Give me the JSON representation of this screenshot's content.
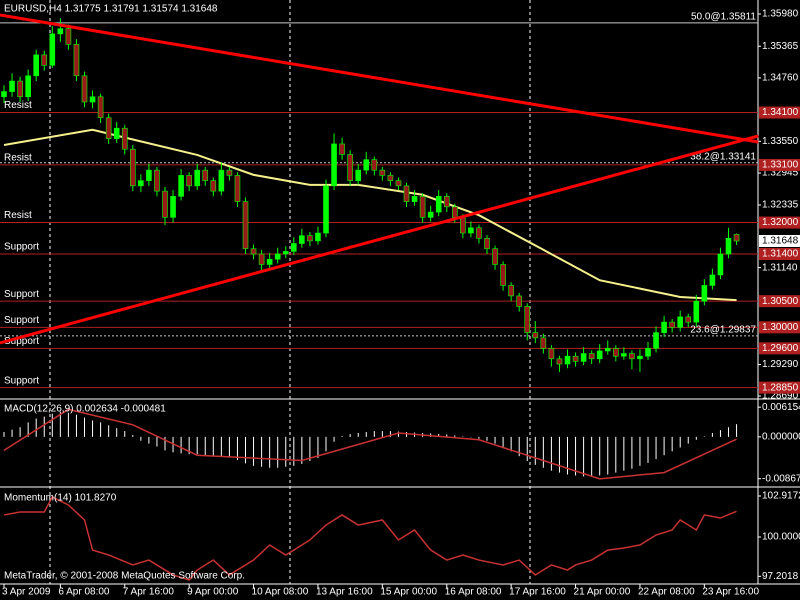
{
  "chart_data": [
    {
      "type": "candlestick",
      "title": "EURUSD,H4  1.31775 1.31791 1.31574 1.31648",
      "up_color": "#00ff00",
      "down_color": "#9a1a1a",
      "wick_color": "#00ff00",
      "ylim": [
        1.28652,
        1.36247
      ],
      "yticks": [
        {
          "value": 1.3598,
          "label": "1.35980"
        },
        {
          "value": 1.35365,
          "label": "1.35365"
        },
        {
          "value": 1.3476,
          "label": "1.34760"
        },
        {
          "value": 1.3355,
          "label": "1.33550"
        },
        {
          "value": 1.32945,
          "label": "1.32945"
        },
        {
          "value": 1.32335,
          "label": "1.32335"
        },
        {
          "value": 1.3114,
          "label": "1.31140"
        },
        {
          "value": 1.2929,
          "label": "1.29290"
        },
        {
          "value": 1.2869,
          "label": "1.28690"
        }
      ],
      "xticks": [
        {
          "value": 0,
          "label": "3 Apr 2009"
        },
        {
          "value": 7,
          "label": "6 Apr 08:00"
        },
        {
          "value": 15,
          "label": "7 Apr 16:00"
        },
        {
          "value": 23,
          "label": "9 Apr 00:00"
        },
        {
          "value": 31,
          "label": "10 Apr 08:00"
        },
        {
          "value": 39,
          "label": "13 Apr 16:00"
        },
        {
          "value": 47,
          "label": "15 Apr 00:00"
        },
        {
          "value": 55,
          "label": "16 Apr 08:00"
        },
        {
          "value": 63,
          "label": "17 Apr 16:00"
        },
        {
          "value": 71,
          "label": "21 Apr 00:00"
        },
        {
          "value": 79,
          "label": "22 Apr 08:00"
        },
        {
          "value": 87,
          "label": "23 Apr 16:00"
        }
      ],
      "candles": [
        [
          1.344,
          1.3462,
          1.3428,
          1.345
        ],
        [
          1.345,
          1.3485,
          1.344,
          1.347
        ],
        [
          1.347,
          1.3478,
          1.343,
          1.344
        ],
        [
          1.344,
          1.3492,
          1.3432,
          1.348
        ],
        [
          1.348,
          1.353,
          1.347,
          1.352
        ],
        [
          1.352,
          1.3528,
          1.349,
          1.35
        ],
        [
          1.35,
          1.3575,
          1.3495,
          1.356
        ],
        [
          1.356,
          1.359,
          1.3545,
          1.357
        ],
        [
          1.357,
          1.3578,
          1.353,
          1.354
        ],
        [
          1.354,
          1.355,
          1.347,
          1.348
        ],
        [
          1.348,
          1.3488,
          1.342,
          1.343
        ],
        [
          1.343,
          1.3452,
          1.3418,
          1.344
        ],
        [
          1.344,
          1.3446,
          1.339,
          1.34
        ],
        [
          1.34,
          1.3408,
          1.335,
          1.336
        ],
        [
          1.336,
          1.3392,
          1.3352,
          1.338
        ],
        [
          1.338,
          1.3386,
          1.333,
          1.334
        ],
        [
          1.334,
          1.3348,
          1.326,
          1.327
        ],
        [
          1.327,
          1.3292,
          1.3258,
          1.328
        ],
        [
          1.328,
          1.3312,
          1.327,
          1.33
        ],
        [
          1.33,
          1.3306,
          1.325,
          1.326
        ],
        [
          1.326,
          1.3268,
          1.3195,
          1.321
        ],
        [
          1.321,
          1.3262,
          1.32,
          1.325
        ],
        [
          1.325,
          1.3302,
          1.3242,
          1.329
        ],
        [
          1.329,
          1.3296,
          1.326,
          1.327
        ],
        [
          1.327,
          1.3312,
          1.3262,
          1.33
        ],
        [
          1.33,
          1.3306,
          1.327,
          1.328
        ],
        [
          1.328,
          1.3286,
          1.325,
          1.326
        ],
        [
          1.326,
          1.3315,
          1.3252,
          1.33
        ],
        [
          1.33,
          1.3306,
          1.328,
          1.329
        ],
        [
          1.329,
          1.3296,
          1.323,
          1.324
        ],
        [
          1.324,
          1.3248,
          1.314,
          1.315
        ],
        [
          1.315,
          1.3158,
          1.313,
          1.314
        ],
        [
          1.314,
          1.3148,
          1.3105,
          1.312
        ],
        [
          1.312,
          1.3142,
          1.3112,
          1.313
        ],
        [
          1.313,
          1.3152,
          1.3122,
          1.314
        ],
        [
          1.314,
          1.3155,
          1.3132,
          1.3145
        ],
        [
          1.3145,
          1.3172,
          1.3138,
          1.316
        ],
        [
          1.316,
          1.3188,
          1.3152,
          1.3175
        ],
        [
          1.3175,
          1.3182,
          1.3155,
          1.3165
        ],
        [
          1.3165,
          1.3192,
          1.3158,
          1.318
        ],
        [
          1.318,
          1.3282,
          1.3172,
          1.327
        ],
        [
          1.327,
          1.337,
          1.3262,
          1.335
        ],
        [
          1.335,
          1.3362,
          1.332,
          1.333
        ],
        [
          1.333,
          1.3338,
          1.327,
          1.328
        ],
        [
          1.328,
          1.3312,
          1.3272,
          1.33
        ],
        [
          1.33,
          1.3335,
          1.3292,
          1.332
        ],
        [
          1.332,
          1.3326,
          1.329,
          1.33
        ],
        [
          1.33,
          1.3306,
          1.328,
          1.329
        ],
        [
          1.329,
          1.3296,
          1.327,
          1.328
        ],
        [
          1.328,
          1.3286,
          1.3262,
          1.327
        ],
        [
          1.327,
          1.3276,
          1.323,
          1.324
        ],
        [
          1.324,
          1.3262,
          1.3232,
          1.325
        ],
        [
          1.325,
          1.3256,
          1.32,
          1.321
        ],
        [
          1.321,
          1.3232,
          1.3202,
          1.322
        ],
        [
          1.322,
          1.3262,
          1.3212,
          1.325
        ],
        [
          1.325,
          1.3256,
          1.322,
          1.323
        ],
        [
          1.323,
          1.3236,
          1.32,
          1.321
        ],
        [
          1.321,
          1.3216,
          1.317,
          1.318
        ],
        [
          1.318,
          1.3202,
          1.3172,
          1.319
        ],
        [
          1.319,
          1.3196,
          1.316,
          1.317
        ],
        [
          1.317,
          1.3176,
          1.314,
          1.315
        ],
        [
          1.315,
          1.3156,
          1.311,
          1.312
        ],
        [
          1.312,
          1.3126,
          1.307,
          1.308
        ],
        [
          1.308,
          1.3086,
          1.305,
          1.306
        ],
        [
          1.306,
          1.3066,
          1.303,
          1.304
        ],
        [
          1.304,
          1.3046,
          1.2975,
          1.299
        ],
        [
          1.299,
          1.3012,
          1.297,
          1.298
        ],
        [
          1.298,
          1.2988,
          1.295,
          1.296
        ],
        [
          1.296,
          1.2966,
          1.2925,
          1.294
        ],
        [
          1.294,
          1.2946,
          1.2915,
          1.293
        ],
        [
          1.293,
          1.2958,
          1.2922,
          1.2945
        ],
        [
          1.2945,
          1.2952,
          1.2925,
          1.2935
        ],
        [
          1.2935,
          1.2962,
          1.2928,
          1.295
        ],
        [
          1.295,
          1.2956,
          1.293,
          1.294
        ],
        [
          1.294,
          1.2968,
          1.2932,
          1.2955
        ],
        [
          1.2955,
          1.2975,
          1.2948,
          1.296
        ],
        [
          1.296,
          1.2966,
          1.2935,
          1.2945
        ],
        [
          1.2945,
          1.2962,
          1.2938,
          1.295
        ],
        [
          1.295,
          1.2956,
          1.292,
          1.294
        ],
        [
          1.294,
          1.2958,
          1.2915,
          1.2945
        ],
        [
          1.2945,
          1.2972,
          1.2938,
          1.296
        ],
        [
          1.296,
          1.3002,
          1.2952,
          1.299
        ],
        [
          1.299,
          1.3022,
          1.2982,
          1.301
        ],
        [
          1.301,
          1.3016,
          1.299,
          1.3
        ],
        [
          1.3,
          1.3032,
          1.2992,
          1.302
        ],
        [
          1.302,
          1.3026,
          1.3,
          1.301
        ],
        [
          1.301,
          1.3062,
          1.3002,
          1.305
        ],
        [
          1.305,
          1.3092,
          1.3042,
          1.308
        ],
        [
          1.308,
          1.3112,
          1.3072,
          1.31
        ],
        [
          1.31,
          1.3152,
          1.3092,
          1.314
        ],
        [
          1.314,
          1.319,
          1.3132,
          1.317
        ],
        [
          1.31775,
          1.31791,
          1.31574,
          1.31648
        ]
      ],
      "moving_average": {
        "color": "#f5f08c",
        "x": [
          0,
          11,
          24,
          31,
          38,
          44,
          52,
          59,
          67,
          74,
          84,
          91
        ],
        "values": [
          1.3348,
          1.3377,
          1.3329,
          1.3291,
          1.3272,
          1.3272,
          1.3253,
          1.3214,
          1.3148,
          1.309,
          1.3058,
          1.3052
        ]
      },
      "trendlines": [
        {
          "color": "#ff0000",
          "x": [
            -0.5,
            93.7
          ],
          "values": [
            1.35961,
            1.33538
          ]
        },
        {
          "color": "#ff0000",
          "x": [
            -0.5,
            93.7
          ],
          "values": [
            1.29703,
            1.33652
          ]
        }
      ],
      "level_color": "#b02020",
      "levels": [
        {
          "text": "Resist",
          "value": 1.341,
          "label": "1.34100"
        },
        {
          "text": "Resist",
          "value": 1.331,
          "label": "1.33100"
        },
        {
          "text": "Resist",
          "value": 1.32,
          "label": "1.32000"
        },
        {
          "text": "Support",
          "value": 1.314,
          "label": "1.31400"
        },
        {
          "text": "Support",
          "value": 1.305,
          "label": "1.30500"
        },
        {
          "text": "Support",
          "value": 1.3,
          "label": "1.30000"
        },
        {
          "text": "Support",
          "value": 1.296,
          "label": "1.29600"
        },
        {
          "text": "Support",
          "value": 1.2885,
          "label": "1.28850"
        }
      ],
      "fib_color": "#c8c8c8",
      "fibonacci": [
        {
          "label": "50.0@1.35811",
          "value": 1.35811
        },
        {
          "label": "38.2@1.33141",
          "value": 1.33141
        },
        {
          "label": "23.6@1.29837",
          "value": 1.29837
        }
      ]
    },
    {
      "type": "macd",
      "title": "MACD(12,26,9) 0.002634 -0.000481",
      "ylim": [
        -0.01018,
        0.00764
      ],
      "yticks": [
        0.006154,
        {
          "value": 0,
          "label": "0.000000"
        },
        -0.00867
      ],
      "histogram": {
        "color": "#ffffff",
        "values": [
          0.001,
          0.0015,
          0.002,
          0.003,
          0.0038,
          0.0042,
          0.0048,
          0.0052,
          0.005,
          0.0046,
          0.004,
          0.0034,
          0.003,
          0.0024,
          0.0018,
          0.0012,
          0.0004,
          -0.0008,
          -0.0014,
          -0.002,
          -0.0028,
          -0.0032,
          -0.0034,
          -0.0036,
          -0.0036,
          -0.0038,
          -0.004,
          -0.004,
          -0.0042,
          -0.0048,
          -0.0055,
          -0.006,
          -0.0062,
          -0.0064,
          -0.0064,
          -0.0062,
          -0.006,
          -0.0056,
          -0.005,
          -0.0044,
          -0.003,
          -0.001,
          0.0002,
          0.0006,
          0.0008,
          0.001,
          0.0012,
          0.0012,
          0.0012,
          0.0011,
          0.001,
          0.0009,
          0.0008,
          0.0007,
          0.0006,
          0.0005,
          0.0003,
          0.0001,
          -0.0001,
          -0.0004,
          -0.0008,
          -0.0014,
          -0.0022,
          -0.003,
          -0.004,
          -0.005,
          -0.0058,
          -0.0064,
          -0.007,
          -0.0074,
          -0.0078,
          -0.008,
          -0.0082,
          -0.0082,
          -0.008,
          -0.0078,
          -0.0074,
          -0.007,
          -0.0066,
          -0.006,
          -0.0054,
          -0.0046,
          -0.0038,
          -0.003,
          -0.0022,
          -0.0014,
          -0.0006,
          0.0,
          0.0008,
          0.0014,
          0.002,
          0.002634
        ]
      },
      "signal": {
        "color": "#c83232",
        "x": [
          0,
          8,
          16,
          24,
          37,
          49,
          59,
          67,
          74,
          82,
          91
        ],
        "values": [
          -0.0028,
          0.0057,
          0.0025,
          -0.0038,
          -0.0049,
          0.0008,
          -0.0006,
          -0.0049,
          -0.0087,
          -0.0074,
          -0.000481
        ]
      }
    },
    {
      "type": "line",
      "title": "Momentum(14) 101.8270",
      "color": "#c83232",
      "ylim": [
        96.727,
        103.415
      ],
      "yticks": [
        102.9172,
        {
          "value": 100,
          "label": "100.0000"
        },
        97.2018
      ],
      "x": [
        0,
        2,
        5,
        6,
        8,
        10,
        11,
        13,
        16,
        18,
        21,
        23,
        24,
        26,
        28,
        31,
        33,
        35,
        36,
        38,
        40,
        42,
        44,
        47,
        49,
        51,
        53,
        55,
        57,
        59,
        62,
        64,
        66,
        68,
        70,
        71,
        73,
        75,
        77,
        79,
        81,
        83,
        84,
        86,
        87,
        89,
        91
      ],
      "values": [
        101.57,
        101.78,
        101.78,
        102.85,
        102.28,
        101.21,
        99.07,
        98.72,
        98.01,
        98.36,
        97.3,
        96.94,
        97.65,
        98.36,
        97.3,
        98.36,
        99.43,
        98.72,
        99.07,
        99.79,
        100.85,
        101.57,
        100.85,
        101.21,
        99.79,
        100.5,
        99.07,
        98.36,
        98.72,
        98.36,
        98.01,
        98.36,
        97.3,
        98.01,
        97.65,
        98.01,
        98.36,
        99.07,
        99.22,
        99.43,
        100.14,
        100.5,
        101.21,
        100.5,
        101.57,
        101.35,
        101.827
      ],
      "footer": "MetaTrader, © 2001-2008 MetaQuotes Software Corp."
    }
  ]
}
